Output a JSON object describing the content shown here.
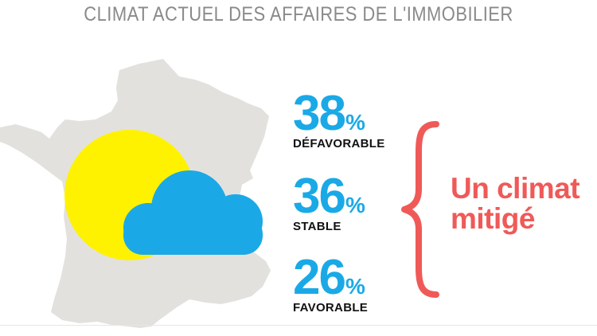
{
  "title": "CLIMAT ACTUEL DES AFFAIRES DE L'IMMOBILIER",
  "stats": [
    {
      "value": "38",
      "unit": "%",
      "label": "DÉFAVORABLE"
    },
    {
      "value": "36",
      "unit": "%",
      "label": "STABLE"
    },
    {
      "value": "26",
      "unit": "%",
      "label": "FAVORABLE"
    }
  ],
  "conclusion": {
    "line1": "Un climat",
    "line2": "mitigé"
  },
  "icons": [
    "france-map-icon",
    "sun-icon",
    "cloud-icon",
    "curly-brace-icon"
  ],
  "colors": {
    "title": "#8a8a8a",
    "map": "#e3e1de",
    "sun": "#fff200",
    "cloud": "#1aa9e6",
    "percent": "#1aa9e6",
    "label": "#111111",
    "accent": "#ef5a58"
  }
}
